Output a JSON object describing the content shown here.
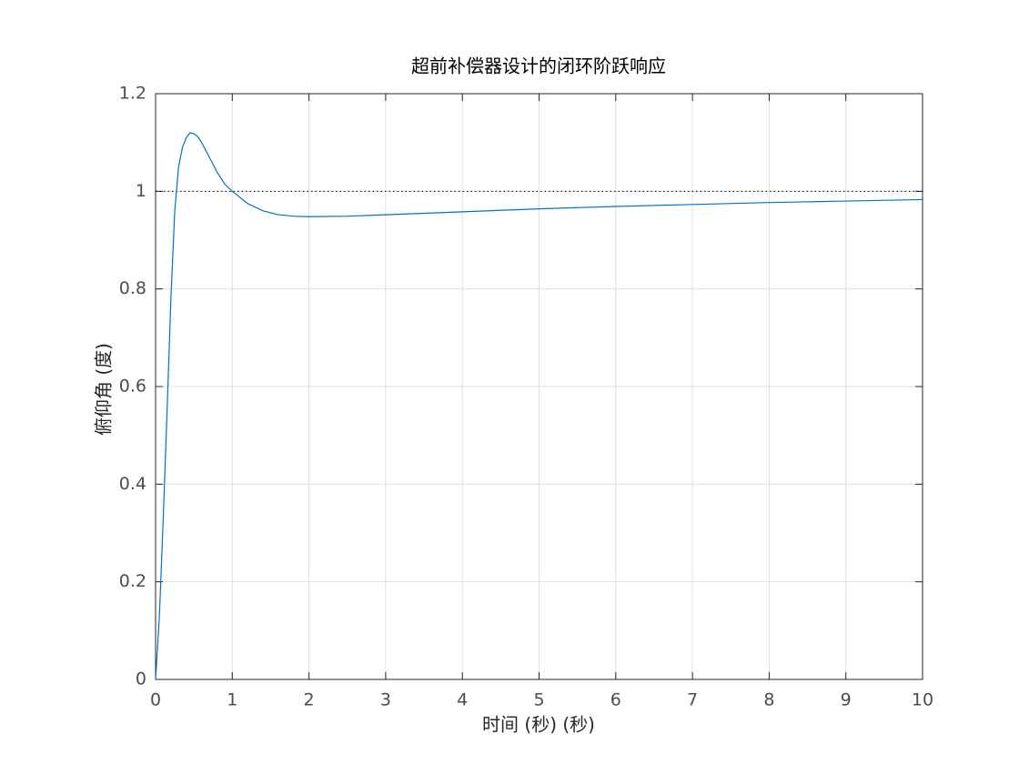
{
  "chart_data": {
    "type": "line",
    "title": "超前补偿器设计的闭环阶跃响应",
    "xlabel": "时间 (秒) (秒)",
    "ylabel": "俯仰角 (度)",
    "x": [
      0,
      0.05,
      0.1,
      0.15,
      0.2,
      0.25,
      0.3,
      0.35,
      0.4,
      0.45,
      0.5,
      0.55,
      0.6,
      0.7,
      0.8,
      0.9,
      1.0,
      1.2,
      1.4,
      1.6,
      1.8,
      2.0,
      2.5,
      3,
      4,
      5,
      6,
      7,
      8,
      9,
      10
    ],
    "series": [
      {
        "color": "#0072bd",
        "values": [
          0,
          0.13,
          0.33,
          0.55,
          0.78,
          0.96,
          1.05,
          1.09,
          1.11,
          1.12,
          1.118,
          1.112,
          1.1,
          1.07,
          1.04,
          1.015,
          1.0,
          0.975,
          0.96,
          0.952,
          0.949,
          0.948,
          0.949,
          0.952,
          0.958,
          0.964,
          0.969,
          0.973,
          0.977,
          0.98,
          0.983
        ]
      }
    ],
    "reference_line": {
      "value": 1,
      "color": "#000000",
      "style": "dotted"
    },
    "xlim": [
      0,
      10
    ],
    "xticks": [
      0,
      1,
      2,
      3,
      4,
      5,
      6,
      7,
      8,
      9,
      10
    ],
    "ylim": [
      0,
      1.2
    ],
    "yticks": [
      0,
      0.2,
      0.4,
      0.6,
      0.8,
      1,
      1.2
    ],
    "grid": true
  }
}
